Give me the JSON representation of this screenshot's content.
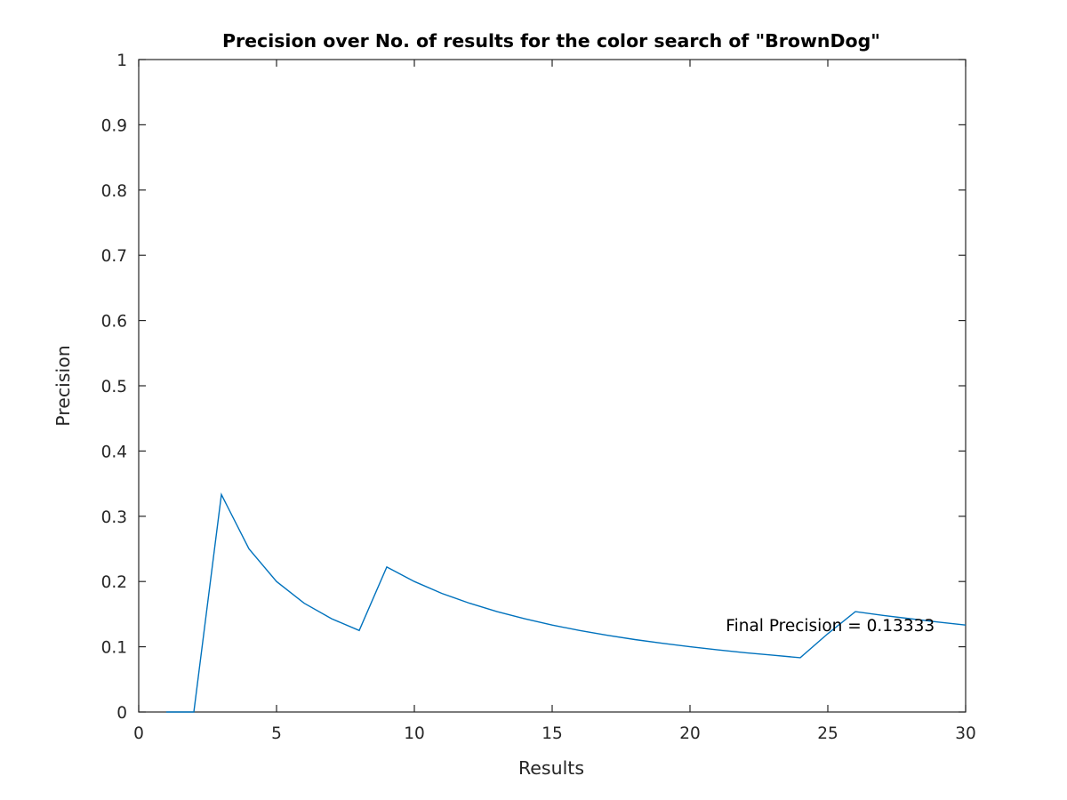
{
  "chart_data": {
    "type": "line",
    "title": "Precision over No. of results for the color search of \"BrownDog\"",
    "xlabel": "Results",
    "ylabel": "Precision",
    "xlim": [
      0,
      30
    ],
    "ylim": [
      0,
      1
    ],
    "xticks": [
      "0",
      "5",
      "10",
      "15",
      "20",
      "25",
      "30"
    ],
    "yticks": [
      "0",
      "0.1",
      "0.2",
      "0.3",
      "0.4",
      "0.5",
      "0.6",
      "0.7",
      "0.8",
      "0.9",
      "1"
    ],
    "grid": false,
    "series": [
      {
        "color": "#0072bd",
        "x": [
          1,
          2,
          3,
          4,
          5,
          6,
          7,
          8,
          9,
          10,
          11,
          12,
          13,
          14,
          15,
          16,
          17,
          18,
          19,
          20,
          21,
          22,
          23,
          24,
          25,
          26,
          27,
          28,
          29,
          30
        ],
        "y": [
          0,
          0,
          0.3333,
          0.25,
          0.2,
          0.1667,
          0.1429,
          0.125,
          0.2222,
          0.2,
          0.1818,
          0.1667,
          0.1538,
          0.1429,
          0.1333,
          0.125,
          0.1176,
          0.1111,
          0.1053,
          0.1,
          0.0952,
          0.0909,
          0.087,
          0.0833,
          0.12,
          0.1538,
          0.1481,
          0.1429,
          0.1379,
          0.1333
        ]
      }
    ],
    "annotation": {
      "text": "Final Precision = 0.13333",
      "x": 21.3,
      "y": 0.13333
    }
  }
}
